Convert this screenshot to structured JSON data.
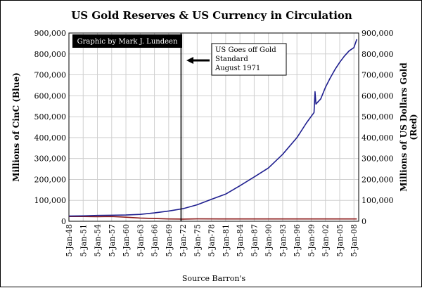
{
  "chart_data": {
    "type": "line",
    "title": "US Gold Reserves & US Currency in Circulation",
    "ylabel_left": "Millions of CinC (Blue)",
    "ylabel_right_line1": "Millions of US Dollars Gold",
    "ylabel_right_line2": "(Red)",
    "source": "Source Barron's",
    "credit": "Graphic by Mark J. Lundeen",
    "annotation": [
      "US Goes off Gold",
      "Standard",
      "August 1971"
    ],
    "ylim": [
      0,
      900000
    ],
    "y_ticks": [
      "0",
      "100,000",
      "200,000",
      "300,000",
      "400,000",
      "500,000",
      "600,000",
      "700,000",
      "800,000",
      "900,000"
    ],
    "y_tick_values": [
      0,
      100000,
      200000,
      300000,
      400000,
      500000,
      600000,
      700000,
      800000,
      900000
    ],
    "x_range": [
      1948.0,
      2009.0
    ],
    "x_ticks": [
      "5-Jan-48",
      "5-Jan-51",
      "5-Jan-54",
      "5-Jan-57",
      "5-Jan-60",
      "5-Jan-63",
      "5-Jan-66",
      "5-Jan-69",
      "5-Jan-72",
      "5-Jan-75",
      "5-Jan-78",
      "5-Jan-81",
      "5-Jan-84",
      "5-Jan-87",
      "5-Jan-90",
      "5-Jan-93",
      "5-Jan-96",
      "5-Jan-99",
      "5-Jan-02",
      "5-Jan-05",
      "5-Jan-08"
    ],
    "x_tick_values": [
      1948,
      1951,
      1954,
      1957,
      1960,
      1963,
      1966,
      1969,
      1972,
      1975,
      1978,
      1981,
      1984,
      1987,
      1990,
      1993,
      1996,
      1999,
      2002,
      2005,
      2008
    ],
    "event_year": 1971.6,
    "grid": true,
    "series": [
      {
        "name": "CinC (Blue)",
        "color": "#1f1f8f",
        "points": [
          [
            1948,
            25000
          ],
          [
            1951,
            26000
          ],
          [
            1954,
            28000
          ],
          [
            1957,
            29000
          ],
          [
            1960,
            30000
          ],
          [
            1963,
            33000
          ],
          [
            1966,
            40000
          ],
          [
            1969,
            49000
          ],
          [
            1972,
            60000
          ],
          [
            1975,
            79000
          ],
          [
            1978,
            105000
          ],
          [
            1981,
            130000
          ],
          [
            1984,
            170000
          ],
          [
            1987,
            212000
          ],
          [
            1990,
            255000
          ],
          [
            1993,
            320000
          ],
          [
            1996,
            400000
          ],
          [
            1998,
            470000
          ],
          [
            1999.6,
            520000
          ],
          [
            1999.8,
            620000
          ],
          [
            2000.0,
            560000
          ],
          [
            2001,
            585000
          ],
          [
            2002,
            640000
          ],
          [
            2003,
            685000
          ],
          [
            2004,
            725000
          ],
          [
            2005,
            760000
          ],
          [
            2006,
            790000
          ],
          [
            2007,
            815000
          ],
          [
            2008,
            830000
          ],
          [
            2008.6,
            870000
          ]
        ]
      },
      {
        "name": "Gold (Red)",
        "color": "#8b1a1a",
        "points": [
          [
            1948,
            23000
          ],
          [
            1951,
            22800
          ],
          [
            1954,
            21800
          ],
          [
            1957,
            22800
          ],
          [
            1960,
            19500
          ],
          [
            1963,
            15500
          ],
          [
            1966,
            13200
          ],
          [
            1969,
            11000
          ],
          [
            1972,
            10400
          ],
          [
            1975,
            11500
          ],
          [
            1980,
            11200
          ],
          [
            1990,
            11100
          ],
          [
            2000,
            11050
          ],
          [
            2008.6,
            11040
          ]
        ]
      }
    ]
  }
}
